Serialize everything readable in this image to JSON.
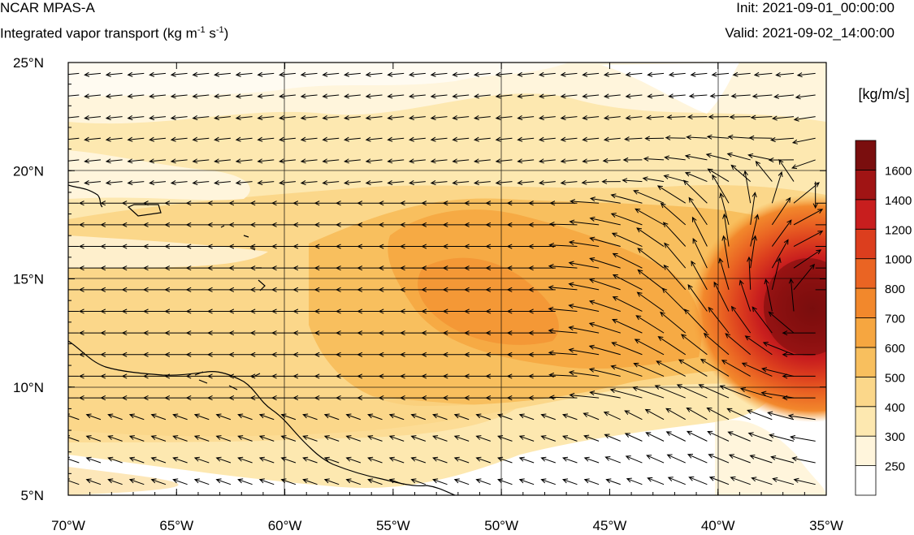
{
  "header": {
    "model": "NCAR MPAS-A",
    "field": "Integrated vapor transport (kg m",
    "field_exp1": "-1",
    "field_mid": " s",
    "field_exp2": "-1",
    "field_end": ")",
    "init": "Init: 2021-09-01_00:00:00",
    "valid": "Valid: 2021-09-02_14:00:00"
  },
  "axes": {
    "lon": {
      "range": [
        -70,
        -35
      ],
      "ticks": [
        -70,
        -65,
        -60,
        -55,
        -50,
        -45,
        -40,
        -35
      ],
      "labels": [
        "70°W",
        "65°W",
        "60°W",
        "55°W",
        "50°W",
        "45°W",
        "40°W",
        "35°W"
      ]
    },
    "lat": {
      "range": [
        5,
        25
      ],
      "ticks": [
        5,
        10,
        15,
        20,
        25
      ],
      "labels": [
        "5°N",
        "10°N",
        "15°N",
        "20°N",
        "25°N"
      ]
    },
    "grid": true
  },
  "colorbar": {
    "unit": "[kg/m/s]",
    "levels": [
      250,
      300,
      400,
      500,
      600,
      700,
      800,
      1000,
      1200,
      1400,
      1600
    ],
    "labels": [
      "250",
      "300",
      "400",
      "500",
      "600",
      "700",
      "800",
      "1000",
      "1200",
      "1400",
      "1600"
    ],
    "colors": [
      "#ffffff",
      "#fff5dc",
      "#fde8b0",
      "#fbd78a",
      "#f8bf5e",
      "#f6a640",
      "#f2882c",
      "#ea6423",
      "#dc3e1e",
      "#c81e1e",
      "#a01414",
      "#7a0e0e"
    ]
  },
  "map_features": {
    "max_center": {
      "lon": -35.5,
      "lat": 13.5,
      "ivt": 1500
    },
    "arrow_color": "#000000",
    "coast_color": "#000000"
  }
}
